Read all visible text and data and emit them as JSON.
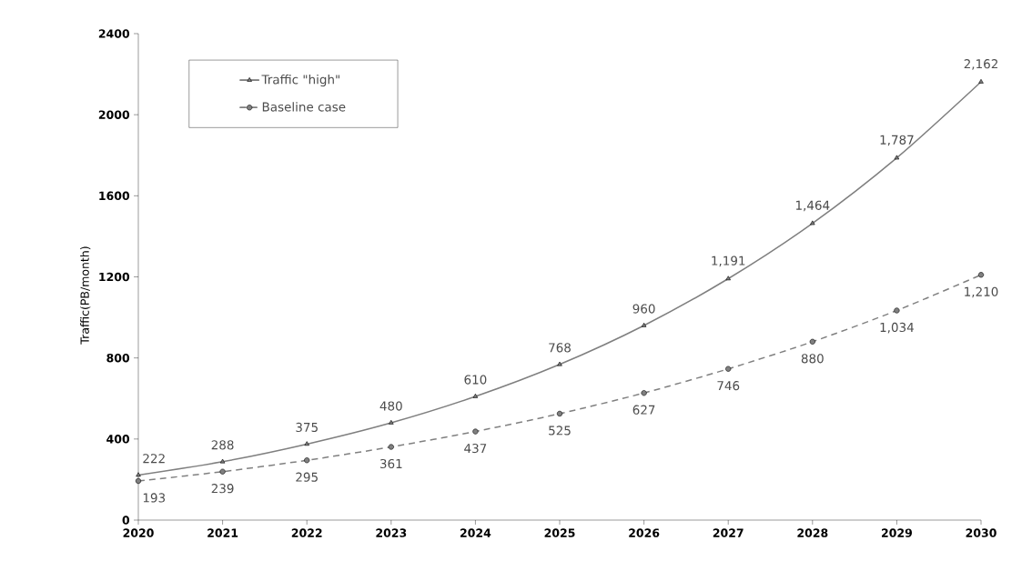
{
  "chart_data": {
    "type": "line",
    "ylabel": "Traffic(PB/month)",
    "x": [
      2020,
      2021,
      2022,
      2023,
      2024,
      2025,
      2026,
      2027,
      2028,
      2029,
      2030
    ],
    "xlim": [
      2020,
      2030
    ],
    "xticks": [
      2020,
      2021,
      2022,
      2023,
      2024,
      2025,
      2026,
      2027,
      2028,
      2029,
      2030
    ],
    "ylim": [
      0,
      2400
    ],
    "yticks": [
      0,
      400,
      800,
      1200,
      1600,
      2000,
      2400
    ],
    "grid": false,
    "legend": "top left",
    "series": [
      {
        "name": "Traffic \"high\"",
        "color": "#7f7f7f",
        "marker": "triangle",
        "line_style": "solid",
        "values": [
          222,
          288,
          375,
          480,
          610,
          768,
          960,
          1191,
          1464,
          1787,
          2162
        ],
        "value_labels": [
          "222",
          "288",
          "375",
          "480",
          "610",
          "768",
          "960",
          "1,191",
          "1,464",
          "1,787",
          "2,162"
        ]
      },
      {
        "name": "Baseline case",
        "color": "#808080",
        "marker": "circle",
        "line_style": "dashed",
        "values": [
          193,
          239,
          295,
          361,
          437,
          525,
          627,
          746,
          880,
          1034,
          1210
        ],
        "value_labels": [
          "193",
          "239",
          "295",
          "361",
          "437",
          "525",
          "627",
          "746",
          "880",
          "1,034",
          "1,210"
        ]
      }
    ]
  }
}
